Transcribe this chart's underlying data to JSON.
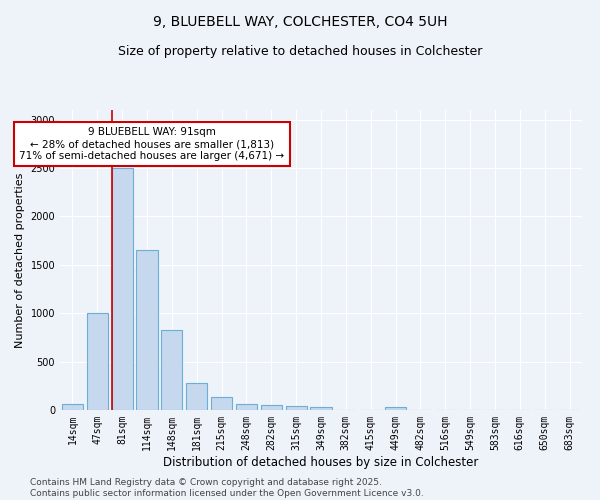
{
  "title1": "9, BLUEBELL WAY, COLCHESTER, CO4 5UH",
  "title2": "Size of property relative to detached houses in Colchester",
  "xlabel": "Distribution of detached houses by size in Colchester",
  "ylabel": "Number of detached properties",
  "categories": [
    "14sqm",
    "47sqm",
    "81sqm",
    "114sqm",
    "148sqm",
    "181sqm",
    "215sqm",
    "248sqm",
    "282sqm",
    "315sqm",
    "349sqm",
    "382sqm",
    "415sqm",
    "449sqm",
    "482sqm",
    "516sqm",
    "549sqm",
    "583sqm",
    "616sqm",
    "650sqm",
    "683sqm"
  ],
  "values": [
    60,
    1000,
    2500,
    1650,
    825,
    280,
    135,
    65,
    55,
    45,
    35,
    0,
    0,
    28,
    0,
    0,
    0,
    0,
    0,
    0,
    0
  ],
  "bar_color": "#c5d8ed",
  "bar_edge_color": "#6baed6",
  "red_line_index": 2,
  "annotation_text": "9 BLUEBELL WAY: 91sqm\n← 28% of detached houses are smaller (1,813)\n71% of semi-detached houses are larger (4,671) →",
  "annotation_box_color": "#ffffff",
  "annotation_box_edge_color": "#cc0000",
  "ylim": [
    0,
    3100
  ],
  "yticks": [
    0,
    500,
    1000,
    1500,
    2000,
    2500,
    3000
  ],
  "footnote": "Contains HM Land Registry data © Crown copyright and database right 2025.\nContains public sector information licensed under the Open Government Licence v3.0.",
  "title1_fontsize": 10,
  "title2_fontsize": 9,
  "xlabel_fontsize": 8.5,
  "ylabel_fontsize": 8,
  "tick_fontsize": 7,
  "annotation_fontsize": 7.5,
  "footnote_fontsize": 6.5,
  "background_color": "#eef2f9"
}
